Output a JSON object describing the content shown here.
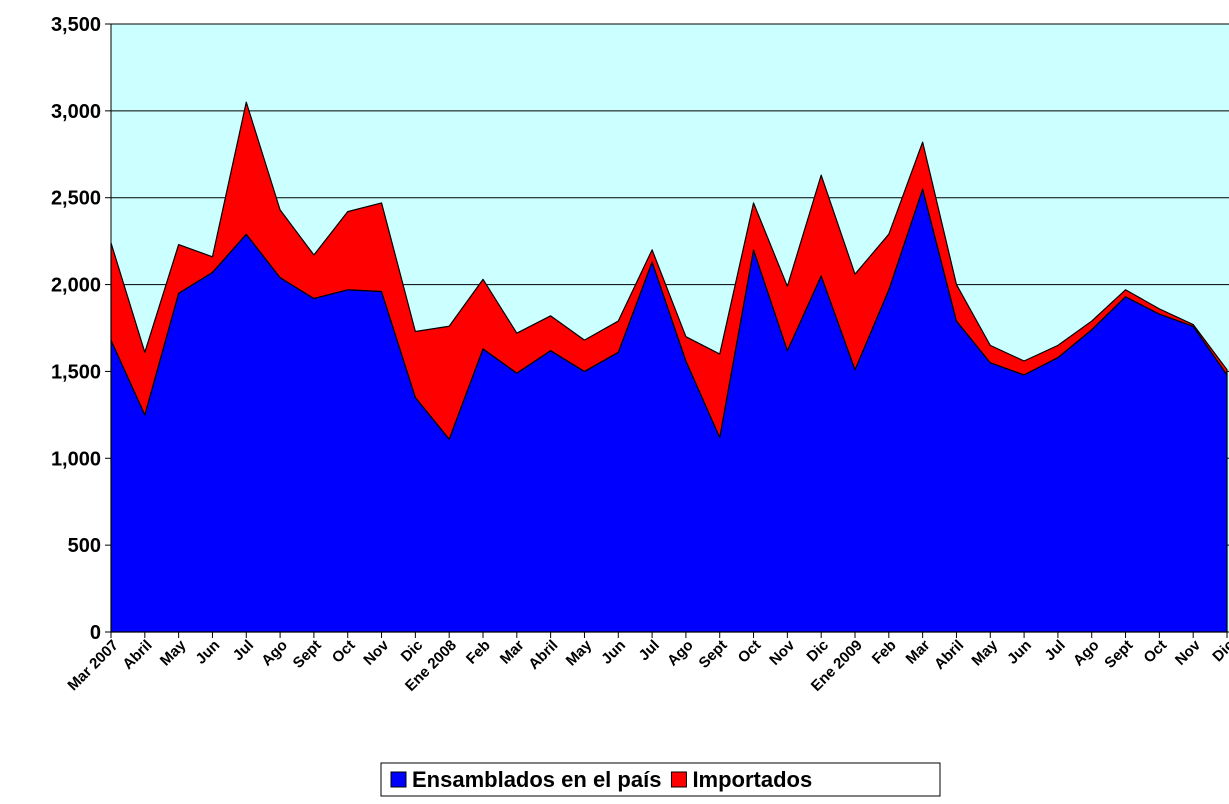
{
  "chart_data": {
    "type": "stacked_area",
    "categories": [
      "Mar 2007",
      "Abril",
      "May",
      "Jun",
      "Jul",
      "Ago",
      "Sept",
      "Oct",
      "Nov",
      "Dic",
      "Ene 2008",
      "Feb",
      "Mar",
      "Abril",
      "May",
      "Jun",
      "Jul",
      "Ago",
      "Sept",
      "Oct",
      "Nov",
      "Dic",
      "Ene 2009",
      "Feb",
      "Mar",
      "Abril",
      "May",
      "Jun",
      "Jul",
      "Ago",
      "Sept",
      "Oct",
      "Nov",
      "Dic"
    ],
    "series": [
      {
        "name": "Ensamblados en el país",
        "color": "#0000ff",
        "values": [
          1680,
          1250,
          1950,
          2070,
          2290,
          2040,
          1920,
          1970,
          1960,
          1350,
          1110,
          1630,
          1490,
          1620,
          1500,
          1610,
          2130,
          1560,
          1120,
          2200,
          1620,
          2050,
          1510,
          1970,
          2550,
          1790,
          1550,
          1480,
          1580,
          1740,
          1930,
          1830,
          1760,
          1480
        ]
      },
      {
        "name": "Importados",
        "color": "#ff0000",
        "values": [
          560,
          360,
          280,
          90,
          760,
          390,
          250,
          450,
          510,
          380,
          650,
          400,
          230,
          200,
          180,
          180,
          70,
          140,
          480,
          270,
          370,
          580,
          550,
          320,
          270,
          210,
          100,
          80,
          70,
          50,
          40,
          30,
          10,
          30
        ]
      }
    ],
    "ylim": [
      0,
      3500
    ],
    "yticks": [
      0,
      500,
      {
        "value": 1000,
        "label": "1,000"
      },
      {
        "value": 1500,
        "label": "1,500"
      },
      {
        "value": 2000,
        "label": "2,000"
      },
      {
        "value": 2500,
        "label": "2,500"
      },
      {
        "value": 3000,
        "label": "3,000"
      },
      {
        "value": 3500,
        "label": "3,500"
      }
    ],
    "grid": true,
    "legend": "bottom",
    "background": "#ccffff"
  }
}
